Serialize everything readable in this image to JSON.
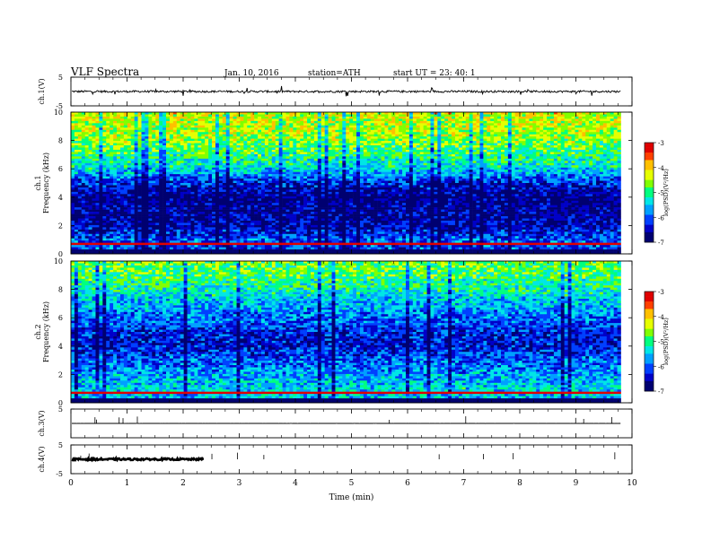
{
  "header": {
    "title": "VLF  Spectra",
    "date": "Jan. 10, 2016",
    "station": "station=ATH",
    "start": "start  UT  =   23: 40: 1"
  },
  "colors": {
    "palette": [
      "#000070",
      "#0000c8",
      "#0040ff",
      "#00a0ff",
      "#00e6e6",
      "#00ff80",
      "#80ff00",
      "#e6ff00",
      "#ffc000",
      "#ff4000",
      "#e00000"
    ]
  },
  "chart_data": [
    {
      "type": "line",
      "id": "ch1",
      "ylabel": "ch.1(V)",
      "ylim": [
        -5,
        5
      ],
      "yticks": [
        "5",
        "-5"
      ],
      "mean": 0,
      "noise": 0.35
    },
    {
      "type": "heatmap",
      "id": "spec1",
      "ylabel": "ch.1\nFrequency  (kHz)",
      "ylim": [
        0,
        10
      ],
      "yticks": [
        "10",
        "8",
        "6",
        "4",
        "2",
        "0"
      ],
      "colorbar": {
        "label": "log(PSD)(V²/Hz)",
        "range": [
          -7,
          -3
        ],
        "ticks": [
          "-3",
          "-4",
          "-5",
          "-6",
          "-7"
        ]
      },
      "profile": [
        {
          "f": 0.0,
          "v": -6.2
        },
        {
          "f": 1.0,
          "v": -6.0
        },
        {
          "f": 2.0,
          "v": -6.6
        },
        {
          "f": 3.0,
          "v": -6.7
        },
        {
          "f": 4.0,
          "v": -6.8
        },
        {
          "f": 5.0,
          "v": -6.3
        },
        {
          "f": 6.0,
          "v": -5.4
        },
        {
          "f": 7.0,
          "v": -5.0
        },
        {
          "f": 8.0,
          "v": -4.6
        },
        {
          "f": 9.0,
          "v": -4.4
        },
        {
          "f": 10.0,
          "v": -4.3
        }
      ]
    },
    {
      "type": "heatmap",
      "id": "spec2",
      "ylabel": "ch.2\nFrequency  (kHz)",
      "ylim": [
        0,
        10
      ],
      "yticks": [
        "10",
        "8",
        "6",
        "4",
        "2",
        "0"
      ],
      "colorbar": {
        "label": "log(PSD)(V²/Hz)",
        "range": [
          -7,
          -3
        ],
        "ticks": [
          "-3",
          "-4",
          "-5",
          "-6",
          "-7"
        ]
      },
      "profile": [
        {
          "f": 0.0,
          "v": -5.6
        },
        {
          "f": 1.0,
          "v": -5.4
        },
        {
          "f": 2.0,
          "v": -5.7
        },
        {
          "f": 3.0,
          "v": -6.0
        },
        {
          "f": 4.0,
          "v": -6.4
        },
        {
          "f": 5.0,
          "v": -6.3
        },
        {
          "f": 6.0,
          "v": -5.9
        },
        {
          "f": 7.0,
          "v": -5.6
        },
        {
          "f": 8.0,
          "v": -5.2
        },
        {
          "f": 9.0,
          "v": -4.9
        },
        {
          "f": 10.0,
          "v": -4.7
        }
      ]
    },
    {
      "type": "line",
      "id": "ch3",
      "ylabel": "ch.3(V)",
      "ylim": [
        -5,
        5
      ],
      "yticks": [
        "5"
      ],
      "mean": 0,
      "noise": 0.02
    },
    {
      "type": "line",
      "id": "ch4",
      "ylabel": "ch.4(V)",
      "ylim": [
        -5,
        5
      ],
      "yticks": [
        "5",
        "-5"
      ],
      "mean": 0,
      "noise": 0.3,
      "gap_min": 2.4
    }
  ],
  "xaxis": {
    "label": "Time  (min)",
    "range": [
      0,
      10
    ],
    "data_end": 9.8,
    "ticks": [
      "0",
      "1",
      "2",
      "3",
      "4",
      "5",
      "6",
      "7",
      "8",
      "9",
      "10"
    ]
  }
}
